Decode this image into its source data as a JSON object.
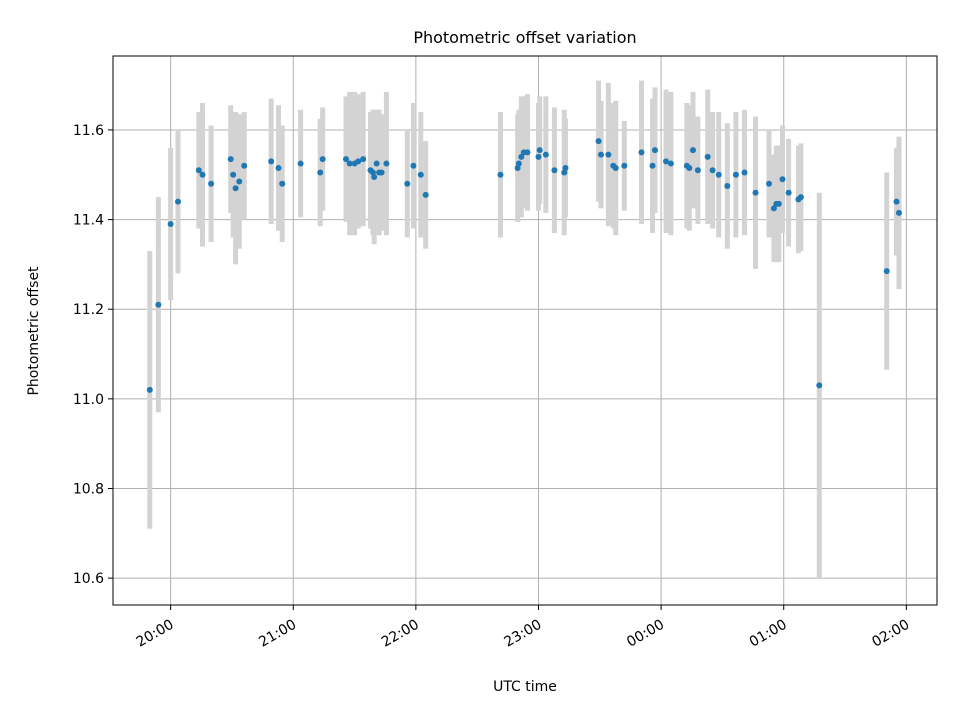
{
  "chart_data": {
    "type": "scatter",
    "title": "Photometric offset variation",
    "xlabel": "UTC time",
    "ylabel": "Photometric offset",
    "x_tick_labels": [
      "20:00",
      "21:00",
      "22:00",
      "23:00",
      "00:00",
      "01:00",
      "02:00"
    ],
    "x_tick_hours": [
      20,
      21,
      22,
      23,
      24,
      25,
      26
    ],
    "xlim_hours": [
      19.53,
      26.25
    ],
    "ylim": [
      10.54,
      11.765
    ],
    "y_ticks": [
      10.6,
      10.8,
      11.0,
      11.2,
      11.4,
      11.6
    ],
    "y_tick_labels": [
      "10.6",
      "10.8",
      "11.0",
      "11.2",
      "11.4",
      "11.6"
    ],
    "grid": true,
    "point_color": "#1f77b4",
    "errorbar_color": "#d3d3d3",
    "series": [
      {
        "x_hours": [
          19.83,
          19.9,
          20.0,
          20.06,
          20.23,
          20.26,
          20.33,
          20.49,
          20.51,
          20.53,
          20.56,
          20.6,
          20.82,
          20.88,
          20.91,
          21.06,
          21.22,
          21.24,
          21.43,
          21.46,
          21.5,
          21.53,
          21.57,
          21.63,
          21.65,
          21.66,
          21.68,
          21.7,
          21.72,
          21.76,
          21.93,
          21.98,
          22.04,
          22.08,
          22.69,
          22.83,
          22.84,
          22.86,
          22.88,
          22.91,
          23.0,
          23.01,
          23.06,
          23.13,
          23.21,
          23.22,
          23.49,
          23.51,
          23.57,
          23.61,
          23.63,
          23.7,
          23.84,
          23.93,
          23.95,
          24.04,
          24.08,
          24.21,
          24.23,
          24.26,
          24.3,
          24.38,
          24.42,
          24.47,
          24.54,
          24.61,
          24.68,
          24.77,
          24.88,
          24.92,
          24.94,
          24.96,
          24.99,
          25.04,
          25.12,
          25.14,
          25.29,
          25.84,
          25.92,
          25.94
        ],
        "y": [
          11.02,
          11.21,
          11.39,
          11.44,
          11.51,
          11.5,
          11.48,
          11.535,
          11.5,
          11.47,
          11.485,
          11.52,
          11.53,
          11.515,
          11.48,
          11.525,
          11.505,
          11.535,
          11.535,
          11.525,
          11.525,
          11.53,
          11.535,
          11.51,
          11.505,
          11.495,
          11.525,
          11.505,
          11.505,
          11.525,
          11.48,
          11.52,
          11.5,
          11.455,
          11.5,
          11.515,
          11.525,
          11.54,
          11.55,
          11.55,
          11.54,
          11.555,
          11.545,
          11.51,
          11.505,
          11.515,
          11.575,
          11.545,
          11.545,
          11.52,
          11.515,
          11.52,
          11.55,
          11.52,
          11.555,
          11.53,
          11.525,
          11.52,
          11.515,
          11.555,
          11.51,
          11.54,
          11.51,
          11.5,
          11.475,
          11.5,
          11.505,
          11.46,
          11.48,
          11.425,
          11.435,
          11.435,
          11.49,
          11.46,
          11.445,
          11.45,
          11.03,
          11.285,
          11.44,
          11.415
        ],
        "y_err": [
          0.31,
          0.24,
          0.17,
          0.16,
          0.13,
          0.16,
          0.13,
          0.12,
          0.14,
          0.17,
          0.15,
          0.12,
          0.14,
          0.14,
          0.13,
          0.12,
          0.12,
          0.115,
          0.14,
          0.16,
          0.16,
          0.15,
          0.15,
          0.13,
          0.14,
          0.15,
          0.12,
          0.14,
          0.13,
          0.16,
          0.12,
          0.14,
          0.14,
          0.12,
          0.14,
          0.12,
          0.12,
          0.135,
          0.125,
          0.13,
          0.12,
          0.12,
          0.13,
          0.14,
          0.14,
          0.11,
          0.135,
          0.12,
          0.16,
          0.14,
          0.15,
          0.1,
          0.16,
          0.15,
          0.14,
          0.16,
          0.16,
          0.14,
          0.14,
          0.13,
          0.12,
          0.15,
          0.13,
          0.14,
          0.14,
          0.14,
          0.14,
          0.17,
          0.12,
          0.12,
          0.13,
          0.13,
          0.12,
          0.12,
          0.12,
          0.12,
          0.43,
          0.22,
          0.12,
          0.17
        ]
      }
    ]
  }
}
